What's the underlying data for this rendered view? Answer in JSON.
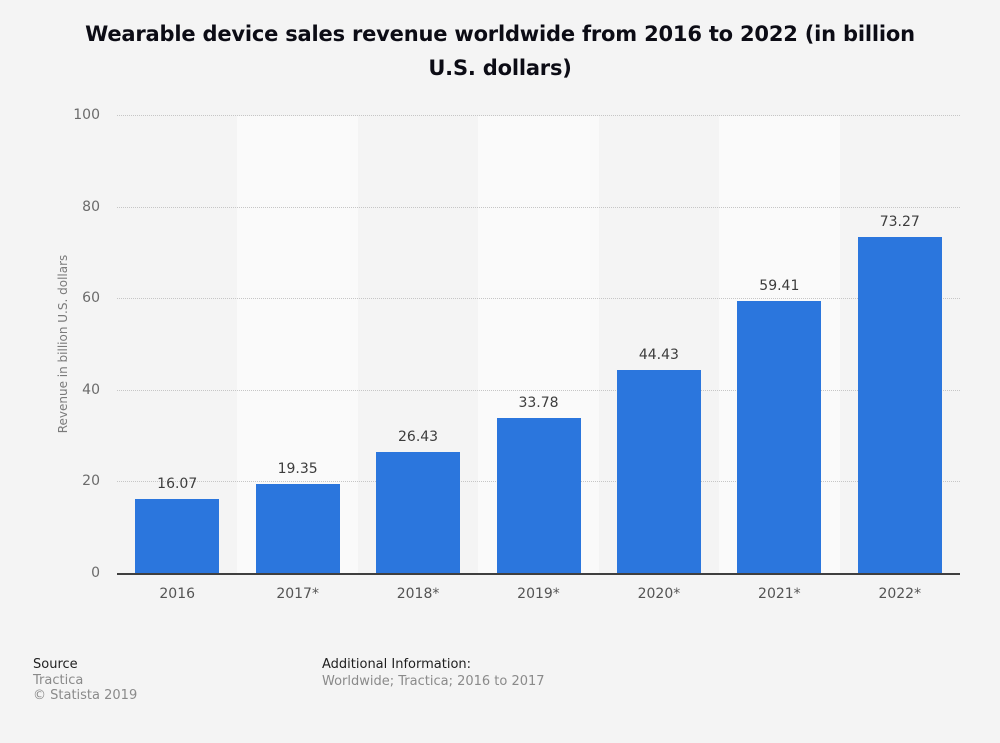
{
  "title": {
    "line1": "Wearable device sales revenue worldwide from 2016 to 2022 (in billion",
    "line2": "U.S. dollars)",
    "full": "Wearable device sales revenue worldwide from 2016 to 2022 (in billion U.S. dollars)"
  },
  "chart_data": {
    "type": "bar",
    "title": "Wearable device sales revenue worldwide from 2016 to 2022 (in billion U.S. dollars)",
    "categories": [
      "2016",
      "2017*",
      "2018*",
      "2019*",
      "2020*",
      "2021*",
      "2022*"
    ],
    "values": [
      16.07,
      19.35,
      26.43,
      33.78,
      44.43,
      59.41,
      73.27
    ],
    "value_labels": [
      "16.07",
      "19.35",
      "26.43",
      "33.78",
      "44.43",
      "59.41",
      "73.27"
    ],
    "xlabel": "",
    "ylabel": "Revenue in billion U.S. dollars",
    "ylim": [
      0,
      100
    ],
    "yticks": [
      0,
      20,
      40,
      60,
      80,
      100
    ],
    "grid": "horizontal dotted lines at each y tick",
    "legend": "none",
    "bar_color": "#2b76dd",
    "column_stripe_colors": [
      "#f4f4f4",
      "#fafafa"
    ],
    "gridline_color": "#c6c6c6",
    "axis_line_color": "#3f3f3f"
  },
  "footer": {
    "source_label": "Source",
    "source_value": "Tractica",
    "copyright": "© Statista 2019",
    "additional_label": "Additional Information:",
    "additional_value": "Worldwide; Tractica; 2016 to 2017"
  }
}
